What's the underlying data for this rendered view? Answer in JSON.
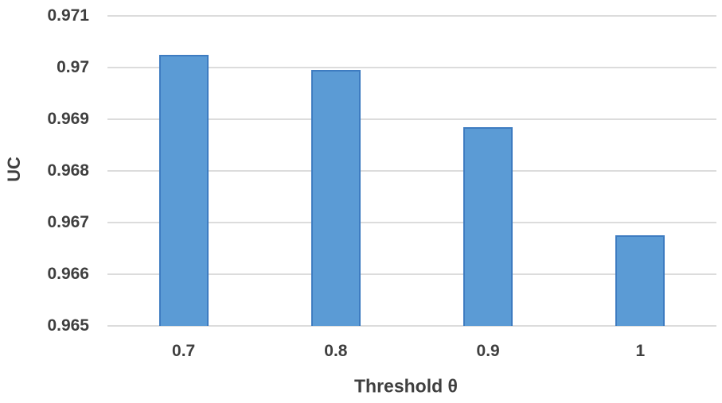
{
  "chart_data": {
    "type": "bar",
    "categories": [
      "0.7",
      "0.8",
      "0.9",
      "1"
    ],
    "values": [
      0.97025,
      0.96995,
      0.96885,
      0.96675
    ],
    "title": "",
    "xlabel": "Threshold θ",
    "ylabel": "UC",
    "ylim": [
      0.965,
      0.971
    ],
    "ytick_step": 0.001,
    "ytick_labels": [
      "0.971",
      "0.97",
      "0.969",
      "0.968",
      "0.967",
      "0.966",
      "0.965"
    ],
    "grid": true,
    "legend": "none",
    "colors": {
      "bar_fill": "#5B9BD5",
      "bar_border": "#3E7CC1",
      "gridline": "#DCDCDC",
      "text": "#3F3F3F",
      "background": "#FFFFFF"
    }
  }
}
